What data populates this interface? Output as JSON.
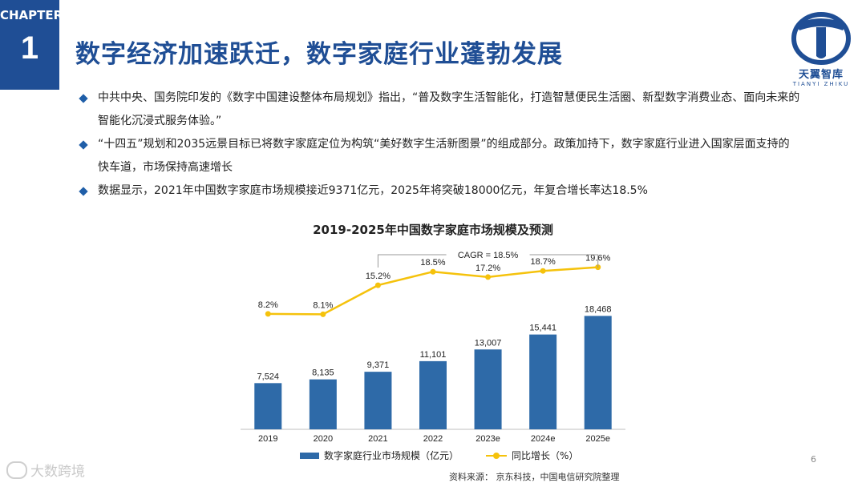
{
  "chapter": {
    "label": "CHAPTER",
    "number": "1"
  },
  "page_title": "数字经济加速跃迁，数字家庭行业蓬勃发展",
  "logo": {
    "name": "天翼智库",
    "sub": "TIANYI ZHIKU"
  },
  "bullets": [
    "中共中央、国务院印发的《数字中国建设整体布局规划》指出，“普及数字生活智能化，打造智慧便民生活圈、新型数字消费业态、面向未来的智能化沉浸式服务体验。”",
    "“十四五”规划和2035远景目标已将数字家庭定位为构筑“美好数字生活新图景”的组成部分。政策加持下，数字家庭行业进入国家层面支持的快车道，市场保持高速增长",
    "数据显示，2021年中国数字家庭市场规模接近9371亿元，2025年将突破18000亿元，年复合增长率达18.5%"
  ],
  "chart_data": {
    "type": "bar",
    "title": "2019-2025年中国数字家庭市场规模及预测",
    "categories": [
      "2019",
      "2020",
      "2021",
      "2022",
      "2023e",
      "2024e",
      "2025e"
    ],
    "series": [
      {
        "name": "数字家庭行业市场规模（亿元）",
        "type": "bar",
        "values": [
          7524,
          8135,
          9371,
          11101,
          13007,
          15441,
          18468
        ],
        "labels": [
          "7,524",
          "8,135",
          "9,371",
          "11,101",
          "13,007",
          "15,441",
          "18,468"
        ]
      },
      {
        "name": "同比增长（%）",
        "type": "line",
        "values": [
          8.2,
          8.1,
          15.2,
          18.5,
          17.2,
          18.7,
          19.6
        ],
        "labels": [
          "8.2%",
          "8.1%",
          "15.2%",
          "18.5%",
          "17.2%",
          "18.7%",
          "19.6%"
        ]
      }
    ],
    "annotation": "CAGR = 18.5%",
    "ylim": [
      0,
      30000
    ],
    "y2lim": [
      -20,
      25
    ],
    "legend_position": "bottom",
    "grid": false,
    "colors": {
      "bar": "#2e6aa8",
      "line": "#f5c20c"
    }
  },
  "source": "资料来源：   京东科技，中国电信研究院整理",
  "page_number": "6",
  "watermark": "大数跨境"
}
